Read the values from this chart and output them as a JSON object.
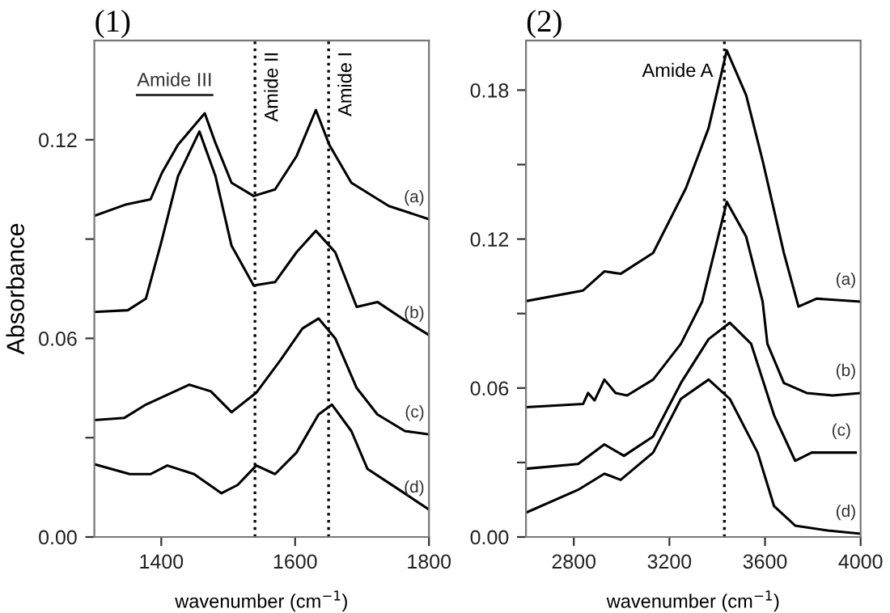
{
  "chart_data": [
    {
      "type": "line",
      "title": "(1)",
      "xlabel": "wavenumber (cm$^{−1}$)",
      "ylabel": "Absorbance",
      "xlim": [
        1300,
        1800
      ],
      "xticks": [
        1400,
        1600,
        1800
      ],
      "ylim": [
        0,
        0.15
      ],
      "yticks": [
        {
          "value": 0,
          "label": "0.00"
        },
        {
          "value": 0.03,
          "label": null
        },
        {
          "value": 0.06,
          "label": "0.06"
        },
        {
          "value": 0.09,
          "label": null
        },
        {
          "value": 0.12,
          "label": "0.12"
        }
      ],
      "grid": false,
      "legend": false,
      "line_style": "solid",
      "marker": "none",
      "ref_lines": [
        {
          "axis": "x",
          "value": 1540,
          "label": "Amide II",
          "color": "#000000",
          "line_style": "dotted"
        },
        {
          "axis": "x",
          "value": 1650,
          "label": "Amide I",
          "color": "#000000",
          "line_style": "dotted"
        }
      ],
      "annotations": [
        "Amide III"
      ],
      "series": [
        {
          "name": "(a)",
          "color": "#000000",
          "x": [
            1300,
            1348,
            1384,
            1401,
            1425,
            1465,
            1481,
            1505,
            1538,
            1570,
            1602,
            1631,
            1651,
            1684,
            1740,
            1800
          ],
          "values": [
            0.097,
            0.1005,
            0.102,
            0.11,
            0.1185,
            0.128,
            0.119,
            0.107,
            0.103,
            0.105,
            0.115,
            0.129,
            0.1185,
            0.107,
            0.1,
            0.096
          ]
        },
        {
          "name": "(b)",
          "color": "#000000",
          "x": [
            1300,
            1350,
            1377,
            1400,
            1425,
            1457,
            1481,
            1505,
            1538,
            1570,
            1602,
            1631,
            1660,
            1692,
            1723,
            1764,
            1800
          ],
          "values": [
            0.068,
            0.0685,
            0.072,
            0.089,
            0.109,
            0.1225,
            0.109,
            0.088,
            0.076,
            0.077,
            0.086,
            0.0925,
            0.086,
            0.0695,
            0.071,
            0.0655,
            0.061
          ]
        },
        {
          "name": "(c)",
          "color": "#000000",
          "x": [
            1300,
            1345,
            1377,
            1442,
            1474,
            1505,
            1542,
            1578,
            1611,
            1635,
            1660,
            1692,
            1723,
            1764,
            1800
          ],
          "values": [
            0.0353,
            0.036,
            0.04,
            0.046,
            0.044,
            0.0377,
            0.0436,
            0.0534,
            0.063,
            0.066,
            0.06,
            0.045,
            0.037,
            0.032,
            0.031
          ]
        },
        {
          "name": "(d)",
          "color": "#000000",
          "x": [
            1300,
            1353,
            1384,
            1409,
            1449,
            1490,
            1514,
            1542,
            1570,
            1602,
            1635,
            1655,
            1684,
            1708,
            1756,
            1800
          ],
          "values": [
            0.022,
            0.019,
            0.019,
            0.0216,
            0.019,
            0.0132,
            0.0157,
            0.0216,
            0.019,
            0.0255,
            0.037,
            0.04,
            0.032,
            0.0206,
            0.0142,
            0.0083
          ]
        }
      ]
    },
    {
      "type": "line",
      "title": "(2)",
      "xlabel": "wavenumber (cm$^{−1}$)",
      "xlim": [
        2600,
        4000
      ],
      "xticks": [
        2800,
        3200,
        3600,
        4000
      ],
      "ylim": [
        0,
        0.2
      ],
      "yticks": [
        {
          "value": 0,
          "label": "0.00"
        },
        {
          "value": 0.03,
          "label": null
        },
        {
          "value": 0.06,
          "label": "0.06"
        },
        {
          "value": 0.09,
          "label": null
        },
        {
          "value": 0.12,
          "label": "0.12"
        },
        {
          "value": 0.15,
          "label": null
        },
        {
          "value": 0.18,
          "label": "0.18"
        }
      ],
      "grid": false,
      "legend": false,
      "line_style": "solid",
      "marker": "none",
      "ref_lines": [
        {
          "axis": "x",
          "value": 3430,
          "label": "Amide A",
          "color": "#000000",
          "line_style": "dotted"
        }
      ],
      "series": [
        {
          "name": "(a)",
          "color": "#000000",
          "x": [
            2600,
            2839,
            2928,
            2996,
            3132,
            3269,
            3364,
            3440,
            3521,
            3590,
            3679,
            3740,
            3815,
            4000
          ],
          "values": [
            0.095,
            0.0993,
            0.107,
            0.106,
            0.1144,
            0.1405,
            0.1647,
            0.196,
            0.178,
            0.1516,
            0.1144,
            0.0928,
            0.096,
            0.0948
          ]
        },
        {
          "name": "(b)",
          "color": "#000000",
          "x": [
            2600,
            2839,
            2860,
            2887,
            2928,
            2975,
            3023,
            3132,
            3248,
            3337,
            3440,
            3521,
            3590,
            3610,
            3679,
            3774,
            3883,
            4000
          ],
          "values": [
            0.0523,
            0.0536,
            0.058,
            0.055,
            0.0634,
            0.058,
            0.057,
            0.0634,
            0.0778,
            0.0948,
            0.135,
            0.121,
            0.0948,
            0.0778,
            0.062,
            0.058,
            0.057,
            0.058
          ]
        },
        {
          "name": "(c)",
          "color": "#000000",
          "x": [
            2600,
            2818,
            2928,
            3010,
            3132,
            3248,
            3364,
            3453,
            3542,
            3638,
            3726,
            3795,
            3979
          ],
          "values": [
            0.0275,
            0.0294,
            0.0373,
            0.0327,
            0.0405,
            0.062,
            0.0797,
            0.0863,
            0.0778,
            0.049,
            0.0307,
            0.034,
            0.034
          ]
        },
        {
          "name": "(d)",
          "color": "#000000",
          "x": [
            2600,
            2818,
            2928,
            2996,
            3132,
            3248,
            3364,
            3453,
            3569,
            3638,
            3726,
            3863,
            4000
          ],
          "values": [
            0.0098,
            0.019,
            0.0255,
            0.023,
            0.034,
            0.0556,
            0.0634,
            0.0556,
            0.034,
            0.0124,
            0.0046,
            0.0026,
            0.0013
          ]
        }
      ]
    }
  ]
}
